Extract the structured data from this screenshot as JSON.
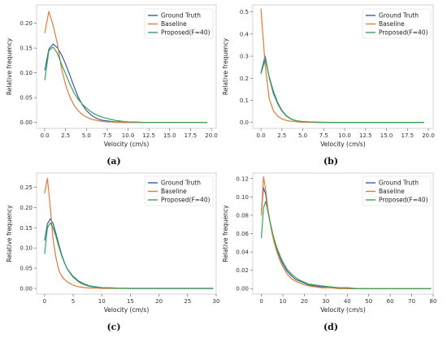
{
  "colors": {
    "Ground Truth": "#3a5da6",
    "Baseline": "#e07b39",
    "Proposed(F=40)": "#3aa15a"
  },
  "chart_data": [
    {
      "type": "line",
      "caption": "(a)",
      "xlabel": "Velocity (cm/s)",
      "ylabel": "Relative frequency",
      "xlim": [
        -0.98,
        20.58
      ],
      "ylim": [
        -0.012,
        0.237
      ],
      "xticks": [
        "0.0",
        "2.5",
        "5.0",
        "7.5",
        "10.0",
        "12.5",
        "15.0",
        "17.5",
        "20.0"
      ],
      "xtick_values": [
        0,
        2.5,
        5,
        7.5,
        10,
        12.5,
        15,
        17.5,
        20
      ],
      "yticks": [
        "0.00",
        "0.05",
        "0.10",
        "0.15",
        "0.20"
      ],
      "ytick_values": [
        0,
        0.05,
        0.1,
        0.15,
        0.2
      ],
      "legend_position": "top-right",
      "x": [
        0.0,
        0.5,
        1.0,
        1.5,
        2.0,
        2.5,
        3.0,
        3.5,
        4.0,
        4.5,
        5.0,
        5.5,
        6.0,
        6.5,
        7.0,
        7.5,
        8.0,
        8.5,
        9.0,
        9.5,
        10.0,
        11.0,
        12.0,
        13.0,
        14.0,
        15.0,
        16.0,
        17.0,
        18.0,
        19.5
      ],
      "series": [
        {
          "name": "Ground Truth",
          "values": [
            0.105,
            0.148,
            0.158,
            0.151,
            0.137,
            0.118,
            0.096,
            0.073,
            0.052,
            0.036,
            0.024,
            0.016,
            0.01,
            0.006,
            0.004,
            0.003,
            0.002,
            0.001,
            0.001,
            0.0,
            0.0,
            0.0,
            0.0,
            0.0,
            0.0,
            0.0,
            0.0,
            0.0,
            0.0,
            0.0
          ]
        },
        {
          "name": "Baseline",
          "values": [
            0.18,
            0.224,
            0.196,
            0.16,
            0.11,
            0.076,
            0.052,
            0.035,
            0.024,
            0.016,
            0.011,
            0.007,
            0.005,
            0.003,
            0.002,
            0.001,
            0.001,
            0.0,
            0.0,
            0.0,
            0.0,
            0.0,
            0.0,
            0.0,
            0.0,
            0.0,
            0.0,
            0.0,
            0.0,
            0.0
          ]
        },
        {
          "name": "Proposed(F=40)",
          "values": [
            0.085,
            0.145,
            0.152,
            0.14,
            0.118,
            0.098,
            0.078,
            0.06,
            0.047,
            0.037,
            0.029,
            0.022,
            0.017,
            0.013,
            0.01,
            0.008,
            0.006,
            0.004,
            0.003,
            0.002,
            0.001,
            0.001,
            0.0,
            0.0,
            0.0,
            0.0,
            0.0,
            0.0,
            0.0,
            0.0
          ]
        }
      ]
    },
    {
      "type": "line",
      "caption": "(b)",
      "xlabel": "Velocity (cm/s)",
      "ylabel": "Relative frequency",
      "xlim": [
        -0.98,
        20.58
      ],
      "ylim": [
        -0.027,
        0.532
      ],
      "xticks": [
        "0.0",
        "2.5",
        "5.0",
        "7.5",
        "10.0",
        "12.5",
        "15.0",
        "17.5",
        "20.0"
      ],
      "xtick_values": [
        0,
        2.5,
        5,
        7.5,
        10,
        12.5,
        15,
        17.5,
        20
      ],
      "yticks": [
        "0.0",
        "0.1",
        "0.2",
        "0.3",
        "0.4",
        "0.5"
      ],
      "ytick_values": [
        0,
        0.1,
        0.2,
        0.3,
        0.4,
        0.5
      ],
      "legend_position": "top-right",
      "x": [
        0.0,
        0.5,
        1.0,
        1.5,
        2.0,
        2.5,
        3.0,
        3.5,
        4.0,
        4.5,
        5.0,
        6.0,
        7.0,
        8.0,
        10.0,
        12.0,
        14.0,
        16.0,
        18.0,
        19.5
      ],
      "series": [
        {
          "name": "Ground Truth",
          "values": [
            0.225,
            0.3,
            0.2,
            0.13,
            0.085,
            0.052,
            0.03,
            0.017,
            0.009,
            0.005,
            0.003,
            0.001,
            0.0,
            0.0,
            0.0,
            0.0,
            0.0,
            0.0,
            0.0,
            0.0
          ]
        },
        {
          "name": "Baseline",
          "values": [
            0.515,
            0.26,
            0.105,
            0.052,
            0.028,
            0.016,
            0.009,
            0.006,
            0.004,
            0.002,
            0.001,
            0.0,
            0.0,
            0.0,
            0.0,
            0.0,
            0.0,
            0.0,
            0.0,
            0.0
          ]
        },
        {
          "name": "Proposed(F=40)",
          "values": [
            0.22,
            0.285,
            0.205,
            0.14,
            0.09,
            0.055,
            0.032,
            0.018,
            0.01,
            0.006,
            0.004,
            0.002,
            0.001,
            0.0,
            0.0,
            0.0,
            0.0,
            0.0,
            0.0,
            0.0
          ]
        }
      ]
    },
    {
      "type": "line",
      "caption": "(c)",
      "xlabel": "Velocity (cm/s)",
      "ylabel": "Relative frequency",
      "xlim": [
        -1.4,
        30.0
      ],
      "ylim": [
        -0.014,
        0.285
      ],
      "xticks": [
        "0",
        "5",
        "10",
        "15",
        "20",
        "25",
        "30"
      ],
      "xtick_values": [
        0,
        5,
        10,
        15,
        20,
        25,
        30
      ],
      "yticks": [
        "0.00",
        "0.05",
        "0.10",
        "0.15",
        "0.20",
        "0.25"
      ],
      "ytick_values": [
        0,
        0.05,
        0.1,
        0.15,
        0.2,
        0.25
      ],
      "legend_position": "top-right",
      "x": [
        0.0,
        0.5,
        1.0,
        1.5,
        2.0,
        2.5,
        3.0,
        3.5,
        4.0,
        5.0,
        6.0,
        7.0,
        8.0,
        9.0,
        10.0,
        12.0,
        15.0,
        20.0,
        25.0,
        29.5
      ],
      "series": [
        {
          "name": "Ground Truth",
          "values": [
            0.118,
            0.16,
            0.172,
            0.16,
            0.135,
            0.108,
            0.083,
            0.063,
            0.047,
            0.028,
            0.016,
            0.009,
            0.005,
            0.003,
            0.002,
            0.001,
            0.0,
            0.0,
            0.0,
            0.0
          ]
        },
        {
          "name": "Baseline",
          "values": [
            0.235,
            0.272,
            0.2,
            0.12,
            0.075,
            0.045,
            0.03,
            0.022,
            0.016,
            0.008,
            0.004,
            0.002,
            0.001,
            0.001,
            0.0,
            0.0,
            0.0,
            0.0,
            0.0,
            0.0
          ]
        },
        {
          "name": "Proposed(F=40)",
          "values": [
            0.085,
            0.15,
            0.162,
            0.15,
            0.128,
            0.103,
            0.08,
            0.062,
            0.048,
            0.03,
            0.018,
            0.011,
            0.006,
            0.004,
            0.002,
            0.001,
            0.0,
            0.0,
            0.0,
            0.0
          ]
        }
      ]
    },
    {
      "type": "line",
      "caption": "(d)",
      "xlabel": "Velocity (cm/s)",
      "ylabel": "Relative frequency",
      "xlim": [
        -4.0,
        80.0
      ],
      "ylim": [
        -0.006,
        0.126
      ],
      "xticks": [
        "0",
        "10",
        "20",
        "30",
        "40",
        "50",
        "60",
        "70",
        "80"
      ],
      "xtick_values": [
        0,
        10,
        20,
        30,
        40,
        50,
        60,
        70,
        80
      ],
      "yticks": [
        "0.00",
        "0.02",
        "0.04",
        "0.06",
        "0.08",
        "0.10",
        "0.12"
      ],
      "ytick_values": [
        0,
        0.02,
        0.04,
        0.06,
        0.08,
        0.1,
        0.12
      ],
      "legend_position": "top-right",
      "x": [
        0,
        1,
        2,
        3,
        4,
        5,
        6,
        7,
        8,
        9,
        10,
        11,
        12,
        14,
        16,
        18,
        20,
        22,
        25,
        28,
        32,
        36,
        40,
        45,
        50,
        60,
        70,
        79
      ],
      "series": [
        {
          "name": "Ground Truth",
          "values": [
            0.085,
            0.11,
            0.103,
            0.085,
            0.073,
            0.062,
            0.052,
            0.044,
            0.038,
            0.032,
            0.027,
            0.023,
            0.019,
            0.014,
            0.01,
            0.008,
            0.006,
            0.004,
            0.003,
            0.002,
            0.001,
            0.001,
            0.0,
            0.0,
            0.0,
            0.0,
            0.0,
            0.0
          ]
        },
        {
          "name": "Baseline",
          "values": [
            0.08,
            0.122,
            0.108,
            0.088,
            0.073,
            0.06,
            0.05,
            0.042,
            0.035,
            0.029,
            0.024,
            0.02,
            0.016,
            0.011,
            0.008,
            0.006,
            0.004,
            0.003,
            0.002,
            0.001,
            0.001,
            0.0,
            0.0,
            0.0,
            0.0,
            0.0,
            0.0,
            0.0
          ]
        },
        {
          "name": "Proposed(F=40)",
          "values": [
            0.055,
            0.088,
            0.095,
            0.085,
            0.074,
            0.063,
            0.054,
            0.046,
            0.04,
            0.034,
            0.029,
            0.025,
            0.021,
            0.016,
            0.012,
            0.009,
            0.007,
            0.005,
            0.004,
            0.003,
            0.002,
            0.001,
            0.001,
            0.0,
            0.0,
            0.0,
            0.0,
            0.0
          ]
        }
      ]
    }
  ]
}
